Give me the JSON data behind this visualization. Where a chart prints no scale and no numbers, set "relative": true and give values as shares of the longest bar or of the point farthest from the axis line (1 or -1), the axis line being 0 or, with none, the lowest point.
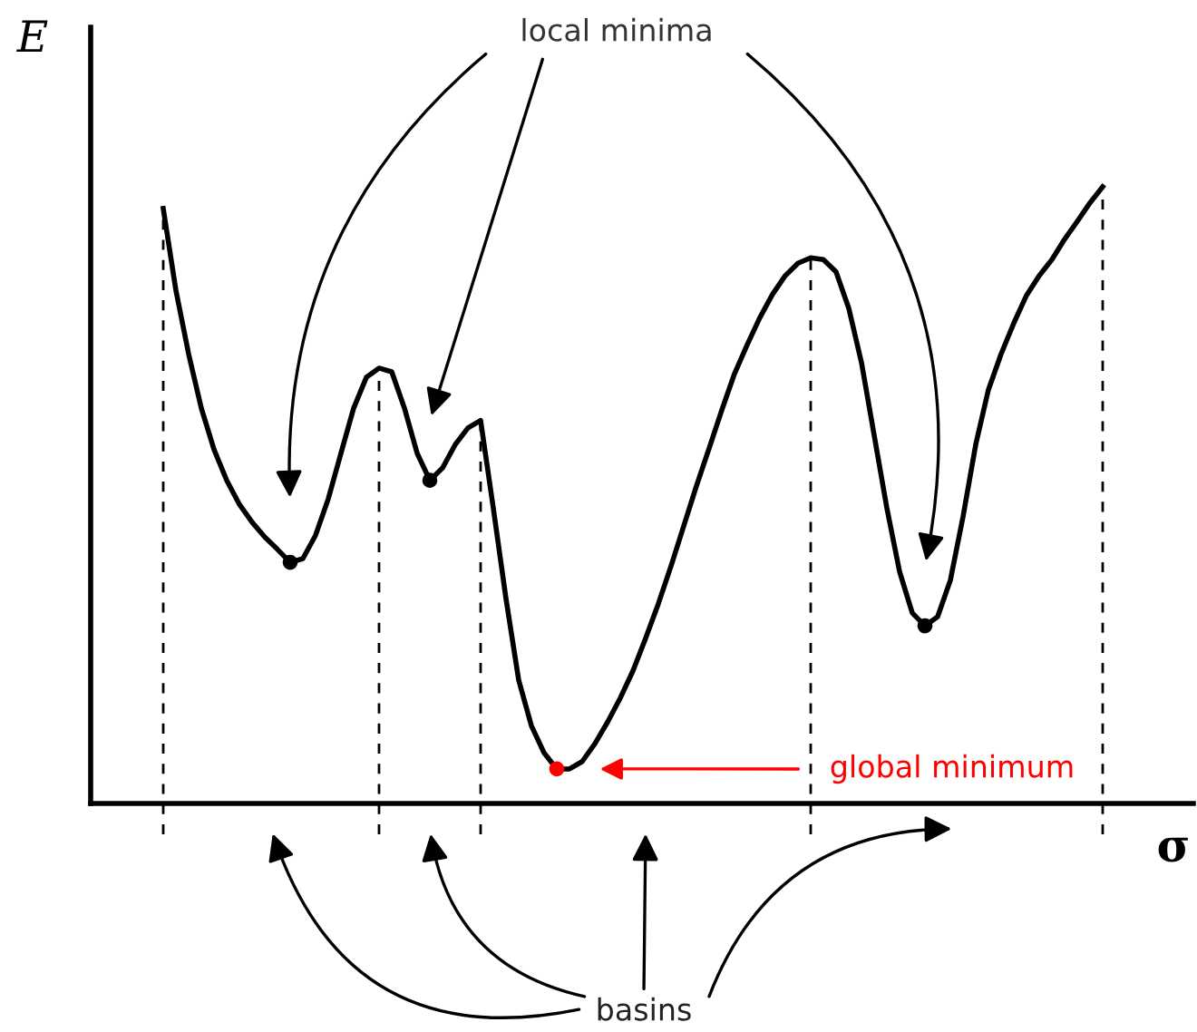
{
  "chart_data": {
    "type": "line",
    "relative": true,
    "grid": "x",
    "xlabel": "σ",
    "ylabel": "E",
    "categories": [
      null,
      null,
      null,
      null,
      null,
      null,
      null,
      null,
      null,
      null,
      null,
      null,
      null,
      null,
      null,
      null,
      null,
      null,
      null,
      null,
      null,
      null,
      null,
      null,
      null,
      null,
      null,
      null,
      null,
      null,
      null,
      null,
      null,
      null,
      null,
      null,
      null,
      null,
      null,
      null,
      null,
      null,
      null,
      null,
      null,
      null,
      null,
      null,
      null,
      null,
      null,
      null,
      null,
      null,
      null,
      null,
      null,
      null,
      null,
      null,
      null,
      null,
      null,
      null,
      null,
      null,
      null,
      null,
      null,
      null,
      null,
      null,
      null,
      null,
      null
    ],
    "series": [
      {
        "color": "#000000",
        "values": [
          0.965,
          0.832,
          0.729,
          0.641,
          0.574,
          0.524,
          0.485,
          0.456,
          0.432,
          0.412,
          0.391,
          0.397,
          0.435,
          0.494,
          0.568,
          0.641,
          0.691,
          0.706,
          0.7,
          0.641,
          0.568,
          0.524,
          0.544,
          0.582,
          0.609,
          0.621,
          0.479,
          0.332,
          0.2,
          0.126,
          0.082,
          0.056,
          0.056,
          0.068,
          0.097,
          0.132,
          0.171,
          0.215,
          0.268,
          0.324,
          0.385,
          0.45,
          0.515,
          0.576,
          0.638,
          0.697,
          0.744,
          0.788,
          0.826,
          0.856,
          0.876,
          0.885,
          0.882,
          0.862,
          0.803,
          0.715,
          0.597,
          0.479,
          0.376,
          0.309,
          0.288,
          0.303,
          0.362,
          0.465,
          0.582,
          0.671,
          0.729,
          0.779,
          0.824,
          0.856,
          0.882,
          0.915,
          0.944,
          0.974,
          1
        ]
      }
    ],
    "annotations": [
      "local minima",
      "global minimum",
      "basins"
    ]
  }
}
